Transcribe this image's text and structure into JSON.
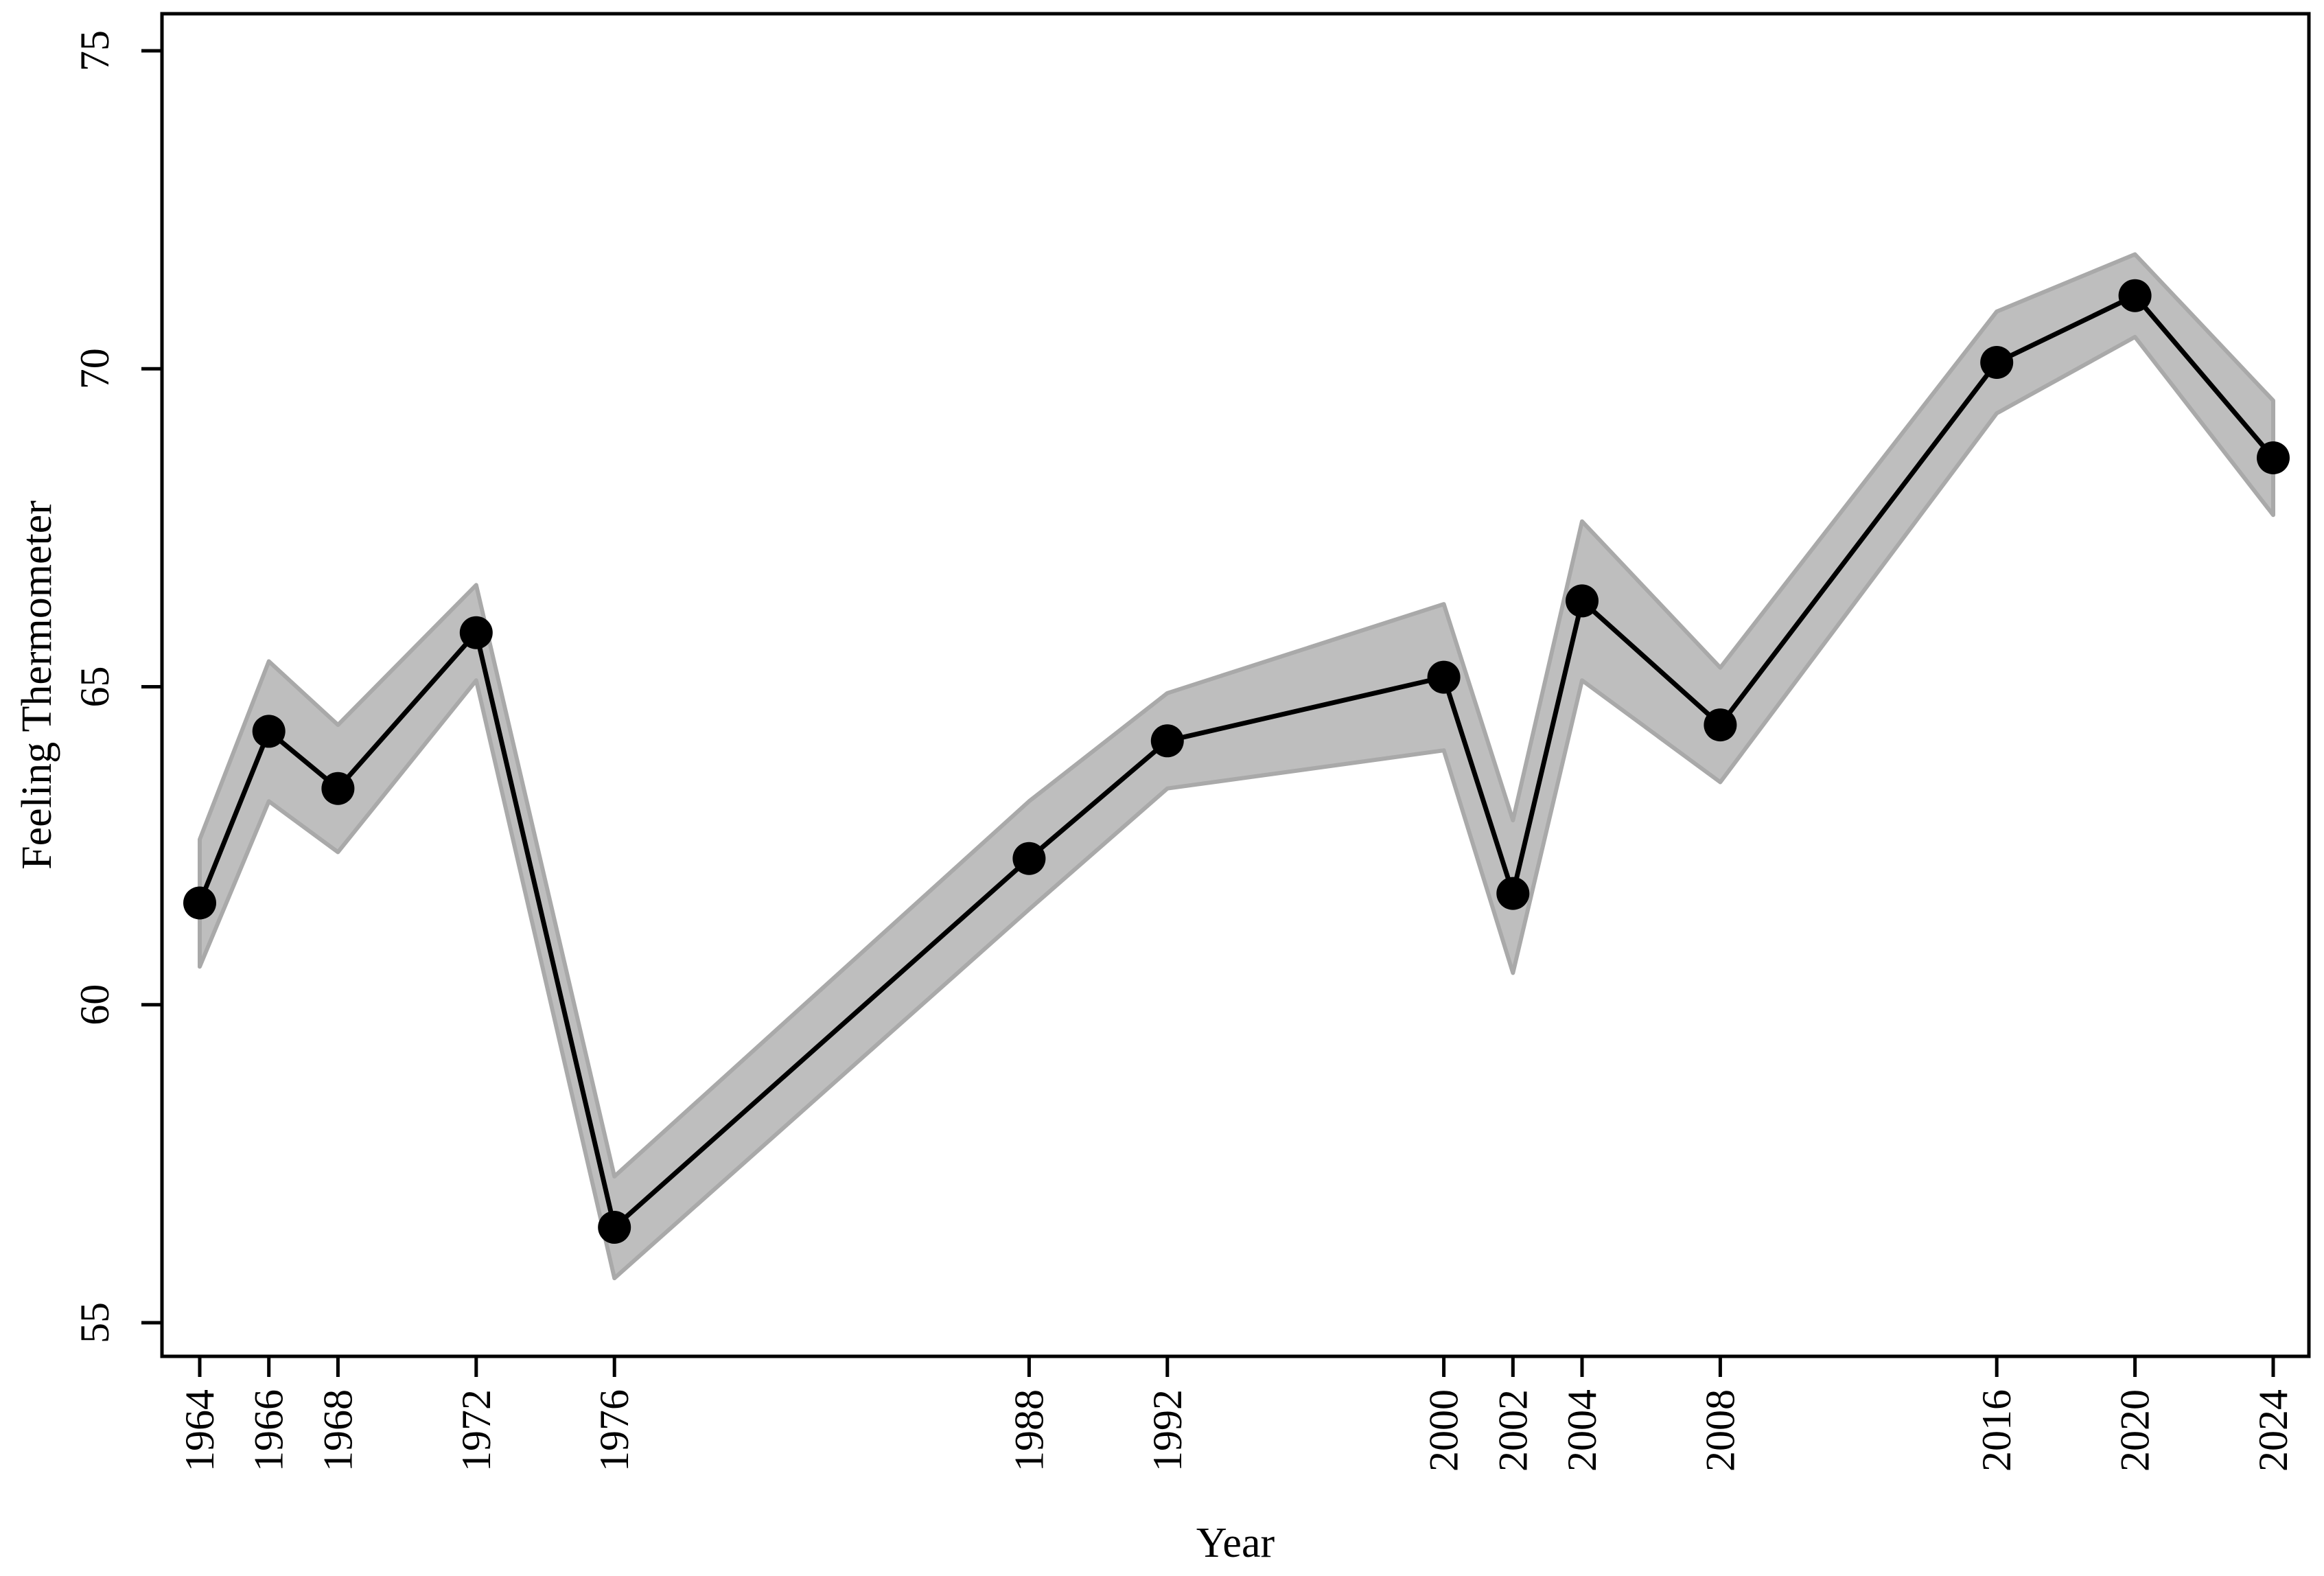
{
  "chart_data": {
    "type": "line",
    "xlabel": "Year",
    "ylabel": "Feeling Thermometer",
    "ylim": [
      55,
      75
    ],
    "yticks": [
      55,
      60,
      65,
      70,
      75
    ],
    "xticks": [
      1964,
      1966,
      1968,
      1972,
      1976,
      1988,
      1992,
      2000,
      2002,
      2004,
      2008,
      2016,
      2020,
      2024
    ],
    "grid": false,
    "legend": "none",
    "colors": {
      "line": "#000000",
      "band": "#bebebe",
      "band_edge": "#a9a9a9"
    },
    "series": [
      {
        "x": [
          1964,
          1966,
          1968,
          1972,
          1976,
          1988,
          1992,
          2000,
          2002,
          2004,
          2008,
          2016,
          2020,
          2024
        ],
        "values": [
          61.6,
          64.3,
          63.4,
          65.85,
          56.5,
          62.3,
          64.15,
          65.15,
          61.75,
          66.35,
          64.4,
          70.1,
          71.15,
          68.6
        ],
        "ci_lower": [
          60.6,
          63.2,
          62.4,
          65.1,
          55.7,
          61.5,
          63.4,
          64.0,
          60.5,
          65.1,
          63.5,
          69.3,
          70.5,
          67.7
        ],
        "ci_upper": [
          62.6,
          65.4,
          64.4,
          66.6,
          57.3,
          63.2,
          64.9,
          66.3,
          62.9,
          67.6,
          65.3,
          70.9,
          71.8,
          69.5
        ]
      }
    ]
  }
}
